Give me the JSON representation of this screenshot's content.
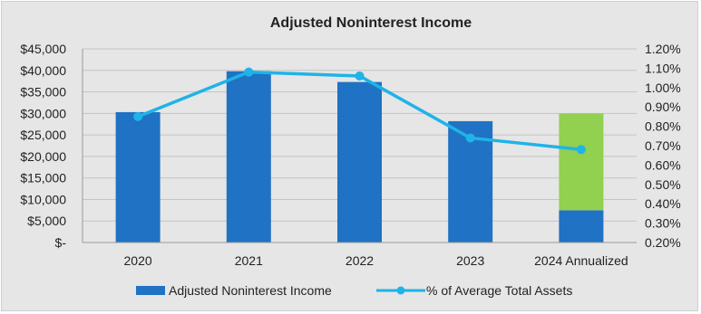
{
  "chart_data": {
    "type": "bar",
    "title": "Adjusted Noninterest Income",
    "categories": [
      "2020",
      "2021",
      "2022",
      "2023",
      "2024 Annualized"
    ],
    "y_left": {
      "range": [
        0,
        45000
      ],
      "ticks": [
        "$-",
        "$5,000",
        "$10,000",
        "$15,000",
        "$20,000",
        "$25,000",
        "$30,000",
        "$35,000",
        "$40,000",
        "$45,000"
      ],
      "tick_values": [
        0,
        5000,
        10000,
        15000,
        20000,
        25000,
        30000,
        35000,
        40000,
        45000
      ]
    },
    "y_right": {
      "range": [
        0.2,
        1.2
      ],
      "ticks": [
        "0.20%",
        "0.30%",
        "0.40%",
        "0.50%",
        "0.60%",
        "0.70%",
        "0.80%",
        "0.90%",
        "1.00%",
        "1.10%",
        "1.20%"
      ],
      "tick_values": [
        0.2,
        0.3,
        0.4,
        0.5,
        0.6,
        0.7,
        0.8,
        0.9,
        1.0,
        1.1,
        1.2
      ]
    },
    "series": [
      {
        "name": "Adjusted Noninterest Income",
        "kind": "bar",
        "axis": "left",
        "color": "#1f72c4",
        "values": [
          30300,
          39800,
          37300,
          28200,
          7500
        ]
      },
      {
        "kind": "bar-stacked",
        "axis": "left",
        "color": "#92d050",
        "values": [
          0,
          0,
          0,
          0,
          22500
        ]
      },
      {
        "name": "% of Average Total Assets",
        "kind": "line",
        "axis": "right",
        "color": "#1fb3e8",
        "values": [
          0.85,
          1.08,
          1.06,
          0.74,
          0.68
        ]
      }
    ],
    "grid": true,
    "legend": "bottom"
  }
}
